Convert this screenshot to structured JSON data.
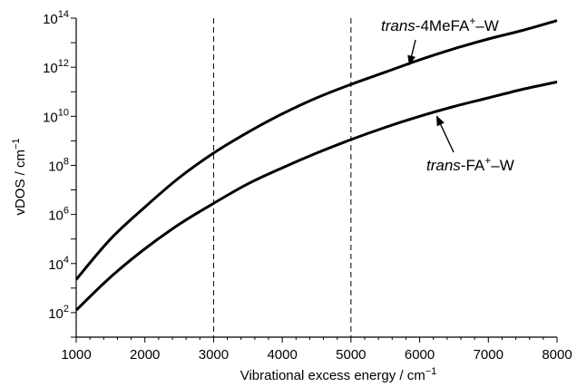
{
  "chart_data": {
    "type": "line",
    "title": "",
    "xlabel": "Vibrational excess energy / cm",
    "xlabel_sup": "−1",
    "ylabel": "vDOS / cm",
    "ylabel_sup": "−1",
    "y_scale": "log",
    "xlim": [
      1000,
      8000
    ],
    "ylim_exp": [
      1,
      14
    ],
    "x_ticks": [
      1000,
      2000,
      3000,
      4000,
      5000,
      6000,
      7000,
      8000
    ],
    "y_tick_base": "10",
    "y_tick_exponents": [
      "2",
      "4",
      "6",
      "8",
      "10",
      "12",
      "14"
    ],
    "grid": false,
    "reference_lines_x": [
      3000,
      5000
    ],
    "series": [
      {
        "name": "trans-4MeFA+–W",
        "x": [
          1000,
          1500,
          2000,
          2500,
          3000,
          3500,
          4000,
          4500,
          5000,
          5500,
          6000,
          6500,
          7000,
          7500,
          8000
        ],
        "log10_y": [
          3.35,
          5.0,
          6.3,
          7.5,
          8.5,
          9.35,
          10.1,
          10.75,
          11.3,
          11.8,
          12.3,
          12.75,
          13.15,
          13.5,
          13.9
        ],
        "color": "#000000"
      },
      {
        "name": "trans-FA+–W",
        "x": [
          1000,
          1500,
          2000,
          2500,
          3000,
          3500,
          4000,
          4500,
          5000,
          5500,
          6000,
          6500,
          7000,
          7500,
          8000
        ],
        "log10_y": [
          2.1,
          3.45,
          4.6,
          5.6,
          6.45,
          7.25,
          7.9,
          8.5,
          9.05,
          9.55,
          10.0,
          10.4,
          10.75,
          11.1,
          11.4
        ],
        "color": "#000000"
      }
    ],
    "annotations": [
      {
        "italic": "trans",
        "text": "-4MeFA",
        "sup": "+",
        "suffix": "–W",
        "arrow_to": [
          5850,
          12.1
        ]
      },
      {
        "italic": "trans",
        "text": "-FA",
        "sup": "+",
        "suffix": "–W",
        "arrow_to": [
          6250,
          10.0
        ]
      }
    ]
  }
}
